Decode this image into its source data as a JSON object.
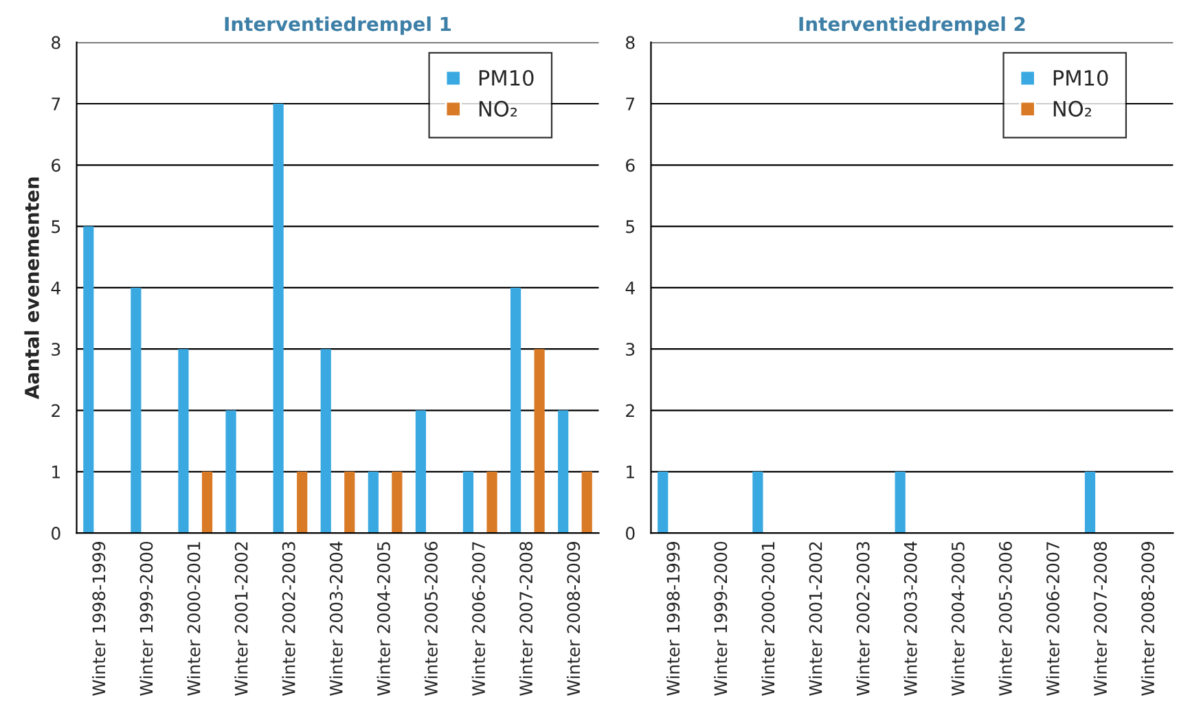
{
  "chart_data": [
    {
      "type": "bar",
      "title": "Interventiedrempel 1",
      "ylabel": "Aantal evenementen",
      "categories": [
        "Winter 1998-1999",
        "Winter 1999-2000",
        "Winter 2000-2001",
        "Winter 2001-2002",
        "Winter 2002-2003",
        "Winter 2003-2004",
        "Winter 2004-2005",
        "Winter 2005-2006",
        "Winter 2006-2007",
        "Winter 2007-2008",
        "Winter 2008-2009"
      ],
      "series": [
        {
          "name": "PM10",
          "color": "#3aa9e1",
          "values": [
            5,
            4,
            3,
            2,
            7,
            3,
            1,
            2,
            1,
            4,
            2
          ]
        },
        {
          "name": "NO₂",
          "color": "#d97a27",
          "values": [
            0,
            0,
            1,
            0,
            1,
            1,
            1,
            0,
            1,
            3,
            1
          ]
        }
      ],
      "ylim": [
        0,
        8
      ],
      "yticks": [
        0,
        1,
        2,
        3,
        4,
        5,
        6,
        7,
        8
      ],
      "grid": "y",
      "legend": "top right"
    },
    {
      "type": "bar",
      "title": "Interventiedrempel 2",
      "categories": [
        "Winter 1998-1999",
        "Winter 1999-2000",
        "Winter 2000-2001",
        "Winter 2001-2002",
        "Winter 2002-2003",
        "Winter 2003-2004",
        "Winter 2004-2005",
        "Winter 2005-2006",
        "Winter 2006-2007",
        "Winter 2007-2008",
        "Winter 2008-2009"
      ],
      "series": [
        {
          "name": "PM10",
          "color": "#3aa9e1",
          "values": [
            1,
            0,
            1,
            0,
            0,
            1,
            0,
            0,
            0,
            1,
            0
          ]
        },
        {
          "name": "NO₂",
          "color": "#d97a27",
          "values": [
            0,
            0,
            0,
            0,
            0,
            0,
            0,
            0,
            0,
            0,
            0
          ]
        }
      ],
      "ylim": [
        0,
        8
      ],
      "yticks": [
        0,
        1,
        2,
        3,
        4,
        5,
        6,
        7,
        8
      ],
      "grid": "y",
      "legend": "top right"
    }
  ]
}
